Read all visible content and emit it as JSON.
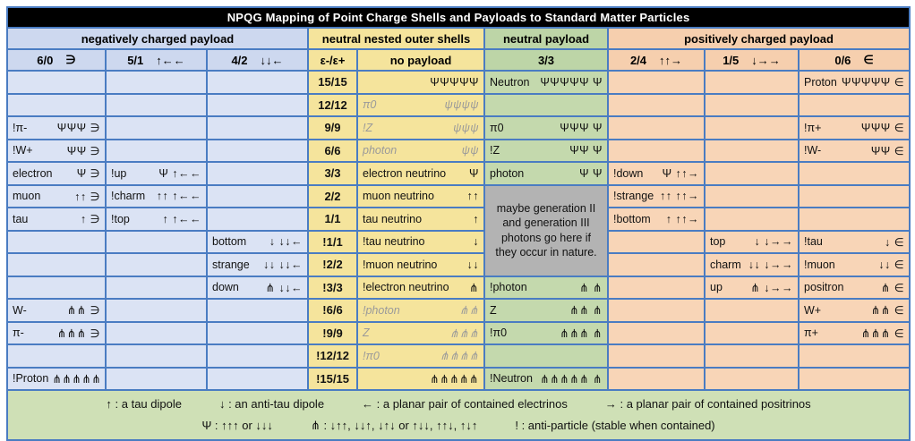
{
  "title": "NPQG Mapping of Point Charge Shells and Payloads to Standard Matter Particles",
  "colors": {
    "border": "#4a7cc2",
    "negative_section": "#dbe3f4",
    "neutral_shell_section": "#f5e49c",
    "neutral_payload_section": "#c4d9ad",
    "positive_section": "#f8d5b7",
    "note_cell": "#b3b3b3",
    "legend_background": "#cfe0b6",
    "title_bar": "#000000"
  },
  "groups": [
    {
      "label": "negatively charged payload"
    },
    {
      "label": "neutral nested outer shells"
    },
    {
      "label": "neutral payload"
    },
    {
      "label": "positively charged payload"
    }
  ],
  "columns": [
    {
      "label": "6/0",
      "symbol": "∋"
    },
    {
      "label": "5/1",
      "symbol": "↑←←"
    },
    {
      "label": "4/2",
      "symbol": "↓↓←"
    },
    {
      "label": "ε-/ε+",
      "symbol": ""
    },
    {
      "label": "no payload",
      "symbol": ""
    },
    {
      "label": "3/3",
      "symbol": ""
    },
    {
      "label": "2/4",
      "symbol": "↑↑→"
    },
    {
      "label": "1/5",
      "symbol": "↓→→"
    },
    {
      "label": "0/6",
      "symbol": "∈"
    }
  ],
  "note": {
    "text": "maybe generation II and generation III photons go here if they occur in nature."
  },
  "rows": [
    {
      "cells": [
        {},
        {},
        {},
        {
          "label": "15/15"
        },
        {
          "sym": "ΨΨΨΨΨ"
        },
        {
          "name": "Neutron",
          "sym": "ΨΨΨΨΨ Ψ"
        },
        {},
        {},
        {
          "name": "Proton",
          "sym": "ΨΨΨΨΨ ∈"
        }
      ]
    },
    {
      "cells": [
        {},
        {},
        {},
        {
          "label": "12/12"
        },
        {
          "name": "π0",
          "sym": "ψψψψ",
          "muted": true
        },
        {},
        {},
        {},
        {}
      ]
    },
    {
      "cells": [
        {
          "name": "!π-",
          "sym": "ΨΨΨ ∋"
        },
        {},
        {},
        {
          "label": "9/9"
        },
        {
          "name": "!Z",
          "sym": "ψψψ",
          "muted": true
        },
        {
          "name": "π0",
          "sym": "ΨΨΨ Ψ"
        },
        {},
        {},
        {
          "name": "!π+",
          "sym": "ΨΨΨ ∈"
        }
      ]
    },
    {
      "cells": [
        {
          "name": "!W+",
          "sym": "ΨΨ ∋"
        },
        {},
        {},
        {
          "label": "6/6"
        },
        {
          "name": "photon",
          "sym": "ψψ",
          "muted": true
        },
        {
          "name": "!Z",
          "sym": "ΨΨ Ψ"
        },
        {},
        {},
        {
          "name": "!W-",
          "sym": "ΨΨ ∈"
        }
      ]
    },
    {
      "cells": [
        {
          "name": "electron",
          "sym": "Ψ ∋"
        },
        {
          "name": "!up",
          "sym": "Ψ ↑←←"
        },
        {},
        {
          "label": "3/3"
        },
        {
          "name": "electron neutrino",
          "sym": "Ψ"
        },
        {
          "name": "photon",
          "sym": "Ψ Ψ"
        },
        {
          "name": "!down",
          "sym": "Ψ ↑↑→"
        },
        {},
        {}
      ]
    },
    {
      "cells": [
        {
          "name": "muon",
          "sym": "↑↑ ∋"
        },
        {
          "name": "!charm",
          "sym": "↑↑ ↑←←"
        },
        {},
        {
          "label": "2/2"
        },
        {
          "name": "muon neutrino",
          "sym": "↑↑"
        },
        {
          "note": true
        },
        {
          "name": "!strange",
          "sym": "↑↑ ↑↑→"
        },
        {},
        {}
      ]
    },
    {
      "cells": [
        {
          "name": "tau",
          "sym": "↑ ∋"
        },
        {
          "name": "!top",
          "sym": "↑ ↑←←"
        },
        {},
        {
          "label": "1/1"
        },
        {
          "name": "tau neutrino",
          "sym": "↑"
        },
        {
          "skip": true
        },
        {
          "name": "!bottom",
          "sym": "↑ ↑↑→"
        },
        {},
        {}
      ]
    },
    {
      "cells": [
        {},
        {},
        {
          "name": "bottom",
          "sym": "↓ ↓↓←"
        },
        {
          "label": "!1/1"
        },
        {
          "name": "!tau neutrino",
          "sym": "↓"
        },
        {
          "skip": true
        },
        {},
        {
          "name": "top",
          "sym": "↓ ↓→→"
        },
        {
          "name": "!tau",
          "sym": "↓ ∈"
        }
      ]
    },
    {
      "cells": [
        {},
        {},
        {
          "name": "strange",
          "sym": "↓↓ ↓↓←"
        },
        {
          "label": "!2/2"
        },
        {
          "name": "!muon neutrino",
          "sym": "↓↓"
        },
        {
          "skip": true
        },
        {},
        {
          "name": "charm",
          "sym": "↓↓ ↓→→"
        },
        {
          "name": "!muon",
          "sym": "↓↓ ∈"
        }
      ]
    },
    {
      "cells": [
        {},
        {},
        {
          "name": "down",
          "sym": "⋔ ↓↓←"
        },
        {
          "label": "!3/3"
        },
        {
          "name": "!electron neutrino",
          "sym": "⋔"
        },
        {
          "name": "!photon",
          "sym": "⋔ ⋔"
        },
        {},
        {
          "name": "up",
          "sym": "⋔ ↓→→"
        },
        {
          "name": "positron",
          "sym": "⋔ ∈"
        }
      ]
    },
    {
      "cells": [
        {
          "name": "W-",
          "sym": "⋔⋔ ∋"
        },
        {},
        {},
        {
          "label": "!6/6"
        },
        {
          "name": "!photon",
          "sym": "⋔⋔",
          "muted": true
        },
        {
          "name": "Z",
          "sym": "⋔⋔ ⋔"
        },
        {},
        {},
        {
          "name": "W+",
          "sym": "⋔⋔ ∈"
        }
      ]
    },
    {
      "cells": [
        {
          "name": "π-",
          "sym": "⋔⋔⋔ ∋"
        },
        {},
        {},
        {
          "label": "!9/9"
        },
        {
          "name": "Z",
          "sym": "⋔⋔⋔",
          "muted": true
        },
        {
          "name": "!π0",
          "sym": "⋔⋔⋔ ⋔"
        },
        {},
        {},
        {
          "name": "π+",
          "sym": "⋔⋔⋔ ∈"
        }
      ]
    },
    {
      "cells": [
        {},
        {},
        {},
        {
          "label": "!12/12"
        },
        {
          "name": "!π0",
          "sym": "⋔⋔⋔⋔",
          "muted": true
        },
        {},
        {},
        {},
        {}
      ]
    },
    {
      "cells": [
        {
          "name": "!Proton",
          "sym": "⋔⋔⋔⋔⋔ ∋"
        },
        {},
        {},
        {
          "label": "!15/15"
        },
        {
          "sym": "⋔⋔⋔⋔⋔"
        },
        {
          "name": "!Neutron",
          "sym": "⋔⋔⋔⋔⋔ ⋔"
        },
        {},
        {},
        {}
      ]
    }
  ],
  "legend": {
    "line1": [
      "↑ : a tau dipole",
      "↓ : an anti-tau dipole",
      "← : a planar pair of contained electrinos",
      "→ : a planar pair of contained positrinos"
    ],
    "line2": [
      "Ψ : ↑↑↑ or ↓↓↓",
      "⋔ : ↓↑↑, ↓↓↑, ↓↑↓ or ↑↓↓, ↑↑↓, ↑↓↑",
      "! : anti-particle (stable when contained)"
    ]
  }
}
